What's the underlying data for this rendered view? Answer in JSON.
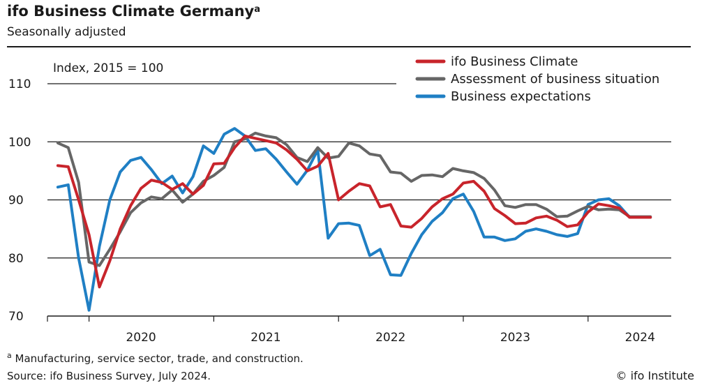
{
  "header": {
    "title": "ifo Business Climate Germany",
    "title_marker": "a",
    "subtitle": "Seasonally adjusted"
  },
  "chart_data": {
    "type": "line",
    "unit_label": "Index, 2015 = 100",
    "ylim": [
      70,
      110
    ],
    "yticks": [
      70,
      80,
      90,
      100,
      110
    ],
    "grid": "horizontal",
    "legend_position": "top-right",
    "x_start": "2019-09",
    "x_end": "2024-09",
    "year_labels": [
      "2020",
      "2021",
      "2022",
      "2023",
      "2024"
    ],
    "year_label_months": [
      "2020-06",
      "2021-06",
      "2022-06",
      "2023-06",
      "2024-06"
    ],
    "year_boundaries": [
      "2020-01",
      "2021-01",
      "2022-01",
      "2023-01",
      "2024-01",
      "2025-01"
    ],
    "months": [
      "2019-10",
      "2019-11",
      "2019-12",
      "2020-01",
      "2020-02",
      "2020-03",
      "2020-04",
      "2020-05",
      "2020-06",
      "2020-07",
      "2020-08",
      "2020-09",
      "2020-10",
      "2020-11",
      "2020-12",
      "2021-01",
      "2021-02",
      "2021-03",
      "2021-04",
      "2021-05",
      "2021-06",
      "2021-07",
      "2021-08",
      "2021-09",
      "2021-10",
      "2021-11",
      "2021-12",
      "2022-01",
      "2022-02",
      "2022-03",
      "2022-04",
      "2022-05",
      "2022-06",
      "2022-07",
      "2022-08",
      "2022-09",
      "2022-10",
      "2022-11",
      "2022-12",
      "2023-01",
      "2023-02",
      "2023-03",
      "2023-04",
      "2023-05",
      "2023-06",
      "2023-07",
      "2023-08",
      "2023-09",
      "2023-10",
      "2023-11",
      "2023-12",
      "2024-01",
      "2024-02",
      "2024-03",
      "2024-04",
      "2024-05",
      "2024-06",
      "2024-07"
    ],
    "series": [
      {
        "name": "ifo Business Climate",
        "color": "#c8242b",
        "values": [
          95.9,
          95.7,
          90.0,
          84.0,
          75.0,
          79.5,
          85.0,
          89.0,
          92.0,
          93.4,
          93.0,
          91.8,
          92.8,
          91.0,
          92.5,
          96.2,
          96.3,
          99.0,
          101.0,
          100.6,
          100.2,
          99.8,
          98.6,
          97.0,
          95.0,
          95.8,
          98.0,
          90.0,
          91.5,
          92.8,
          92.4,
          88.8,
          89.2,
          85.5,
          85.3,
          86.8,
          88.8,
          90.2,
          91.0,
          92.9,
          93.2,
          91.5,
          88.5,
          87.3,
          85.9,
          86.0,
          86.9,
          87.2,
          86.5,
          85.4,
          85.7,
          87.9,
          89.3,
          89.0,
          88.6,
          87.0,
          87.0,
          87.0
        ]
      },
      {
        "name": "Assessment of business situation",
        "color": "#666666",
        "values": [
          99.8,
          99.0,
          93.0,
          79.3,
          78.7,
          81.5,
          84.5,
          87.8,
          89.5,
          90.5,
          90.2,
          91.7,
          89.6,
          91.0,
          93.2,
          94.2,
          95.6,
          100.0,
          100.5,
          101.5,
          101.0,
          100.7,
          99.5,
          97.3,
          96.6,
          99.0,
          97.2,
          97.5,
          99.8,
          99.3,
          97.9,
          97.6,
          94.8,
          94.6,
          93.2,
          94.2,
          94.3,
          94.0,
          95.4,
          95.0,
          94.7,
          93.7,
          91.7,
          89.0,
          88.7,
          89.2,
          89.2,
          88.4,
          87.1,
          87.2,
          88.1,
          88.9,
          88.3,
          88.4,
          88.3,
          87.1,
          87.1,
          87.1
        ]
      },
      {
        "name": "Business expectations",
        "color": "#1f7fc4",
        "values": [
          92.2,
          92.6,
          80.0,
          71.0,
          82.0,
          90.0,
          94.8,
          96.8,
          97.3,
          95.2,
          92.8,
          94.1,
          91.2,
          94.0,
          99.3,
          98.0,
          101.3,
          102.3,
          101.0,
          98.5,
          98.8,
          97.0,
          94.8,
          92.7,
          95.1,
          98.6,
          83.4,
          85.9,
          86.0,
          85.6,
          80.4,
          81.5,
          77.1,
          77.0,
          80.8,
          84.0,
          86.3,
          87.8,
          90.2,
          91.0,
          88.0,
          83.6,
          83.6,
          83.0,
          83.3,
          84.6,
          85.0,
          84.6,
          84.0,
          83.7,
          84.2,
          89.2,
          90.0,
          90.2,
          89.0,
          87.0,
          87.0,
          87.0
        ]
      }
    ]
  },
  "footer": {
    "footnote_marker": "a",
    "footnote": "Manufacturing, service sector, trade, and construction.",
    "source": "Source: ifo Business Survey, July 2024.",
    "copyright": "© ifo Institute"
  }
}
